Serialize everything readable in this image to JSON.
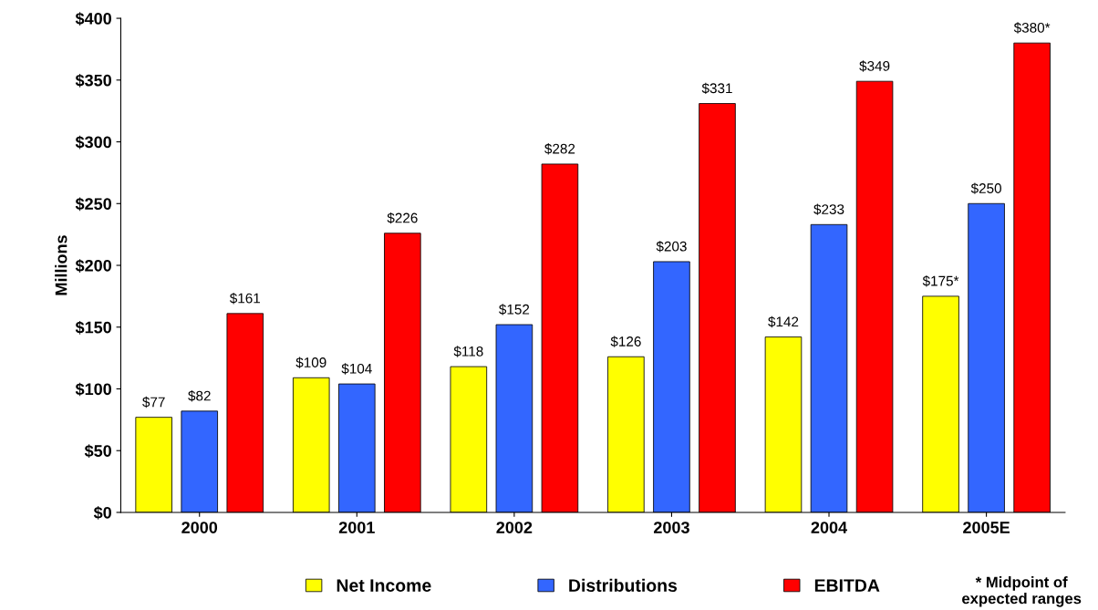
{
  "chart_data": {
    "type": "bar",
    "ylabel": "Millions",
    "categories": [
      "2000",
      "2001",
      "2002",
      "2003",
      "2004",
      "2005E"
    ],
    "series": [
      {
        "name": "Net Income",
        "color": "#ffff00",
        "values": [
          77,
          109,
          118,
          126,
          142,
          175
        ],
        "value_labels": [
          "$77",
          "$109",
          "$118",
          "$126",
          "$142",
          "$175*"
        ]
      },
      {
        "name": "Distributions",
        "color": "#3366ff",
        "values": [
          82,
          104,
          152,
          203,
          233,
          250
        ],
        "value_labels": [
          "$82",
          "$104",
          "$152",
          "$203",
          "$233",
          "$250"
        ]
      },
      {
        "name": "EBITDA",
        "color": "#ff0000",
        "values": [
          161,
          226,
          282,
          331,
          349,
          380
        ],
        "value_labels": [
          "$161",
          "$226",
          "$282",
          "$331",
          "$349",
          "$380*"
        ]
      }
    ],
    "ylim": [
      0,
      400
    ],
    "yticks": [
      {
        "value": 0,
        "label": "$0"
      },
      {
        "value": 50,
        "label": "$50"
      },
      {
        "value": 100,
        "label": "$100"
      },
      {
        "value": 150,
        "label": "$150"
      },
      {
        "value": 200,
        "label": "$200"
      },
      {
        "value": 250,
        "label": "$250"
      },
      {
        "value": 300,
        "label": "$300"
      },
      {
        "value": 350,
        "label": "$350"
      },
      {
        "value": 400,
        "label": "$400"
      }
    ],
    "grid": false,
    "legend": "bottom",
    "annotations": [
      "* Midpoint of\nexpected ranges"
    ]
  }
}
